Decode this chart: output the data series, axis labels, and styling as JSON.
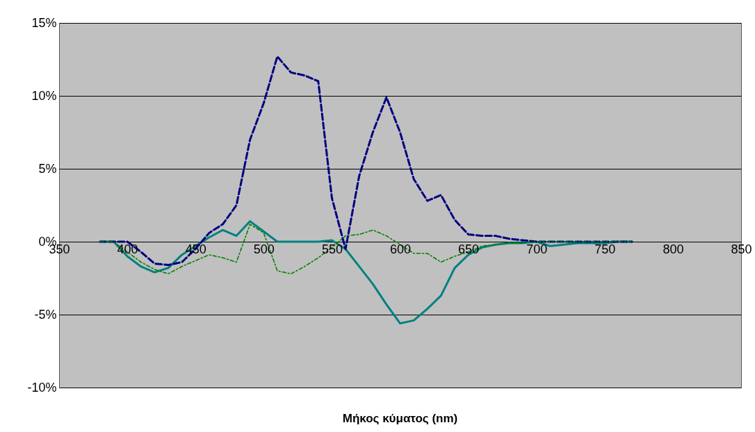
{
  "chart_data": {
    "type": "line",
    "xlabel": "Μήκος κύματος (nm)",
    "x": [
      380,
      390,
      400,
      410,
      420,
      430,
      440,
      450,
      460,
      470,
      480,
      490,
      500,
      510,
      520,
      530,
      540,
      550,
      560,
      570,
      580,
      590,
      600,
      610,
      620,
      630,
      640,
      650,
      660,
      670,
      680,
      690,
      700,
      710,
      720,
      730,
      740,
      750,
      760,
      770
    ],
    "series": [
      {
        "color": "#008080",
        "line_style": "solid",
        "values": [
          0,
          0,
          -1.0,
          -1.7,
          -2.1,
          -1.8,
          -0.9,
          -0.3,
          0.3,
          0.8,
          0.4,
          1.4,
          0.7,
          0,
          0,
          0,
          0,
          0.1,
          -0.5,
          -1.7,
          -2.9,
          -4.3,
          -5.6,
          -5.4,
          -4.6,
          -3.7,
          -1.8,
          -0.9,
          -0.4,
          -0.2,
          -0.1,
          -0.1,
          0,
          -0.3,
          -0.2,
          -0.1,
          -0.1,
          -0.1,
          0,
          0
        ]
      },
      {
        "color": "#000080",
        "line_style": "dashed",
        "values": [
          0,
          0,
          0,
          -0.7,
          -1.5,
          -1.6,
          -1.4,
          -0.5,
          0.6,
          1.2,
          2.5,
          7.0,
          9.5,
          12.7,
          11.6,
          11.4,
          11.0,
          3.0,
          -0.5,
          4.5,
          7.5,
          9.9,
          7.5,
          4.3,
          2.8,
          3.2,
          1.5,
          0.5,
          0.4,
          0.4,
          0.2,
          0.1,
          0,
          0,
          0,
          0,
          0,
          0,
          0,
          0
        ]
      },
      {
        "color": "#008000",
        "line_style": "dotted",
        "values": [
          0,
          0,
          -0.7,
          -1.4,
          -1.9,
          -2.2,
          -1.7,
          -1.3,
          -0.9,
          -1.1,
          -1.4,
          1.2,
          0.6,
          -2.0,
          -2.2,
          -1.7,
          -1.1,
          -0.4,
          0.4,
          0.5,
          0.8,
          0.4,
          -0.2,
          -0.8,
          -0.8,
          -1.4,
          -1.0,
          -0.7,
          -0.3,
          -0.2,
          -0.1,
          -0.1,
          0,
          0,
          0,
          0,
          0,
          0,
          0,
          0
        ]
      }
    ],
    "xlim": [
      350,
      850
    ],
    "xticks": [
      350,
      400,
      450,
      500,
      550,
      600,
      650,
      700,
      750,
      800,
      850
    ],
    "ylim": [
      -10,
      15
    ],
    "yticks": [
      {
        "value": -10,
        "label": "-10%"
      },
      {
        "value": -5,
        "label": "-5%"
      },
      {
        "value": 0,
        "label": "0%"
      },
      {
        "value": 5,
        "label": "5%"
      },
      {
        "value": 10,
        "label": "10%"
      },
      {
        "value": 15,
        "label": "15%"
      }
    ],
    "grid": "y"
  }
}
